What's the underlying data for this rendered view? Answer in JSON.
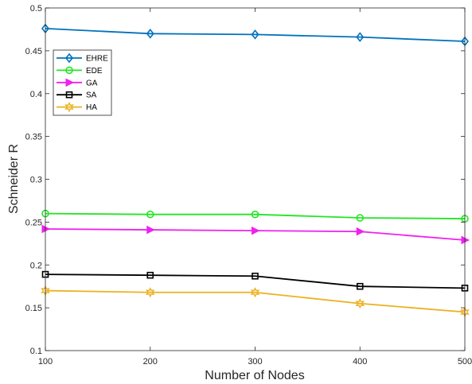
{
  "chart_data": {
    "type": "line",
    "title": "",
    "xlabel": "Number of Nodes",
    "ylabel": "Schneider R",
    "x": [
      100,
      200,
      300,
      400,
      500
    ],
    "xlim": [
      100,
      500
    ],
    "ylim": [
      0.1,
      0.5
    ],
    "x_ticks": [
      "100",
      "200",
      "300",
      "400",
      "500"
    ],
    "y_ticks": [
      "0.1",
      "0.15",
      "0.2",
      "0.25",
      "0.3",
      "0.35",
      "0.4",
      "0.45",
      "0.5"
    ],
    "grid": false,
    "legend_position": "top-left",
    "series": [
      {
        "name": "EHRE",
        "color": "#0072BD",
        "marker": "diamond",
        "values": [
          0.476,
          0.47,
          0.469,
          0.466,
          0.461
        ]
      },
      {
        "name": "EDE",
        "color": "#22E622",
        "marker": "circle",
        "values": [
          0.26,
          0.259,
          0.259,
          0.255,
          0.254
        ]
      },
      {
        "name": "GA",
        "color": "#EE22EE",
        "marker": "triangle-right",
        "values": [
          0.242,
          0.241,
          0.24,
          0.239,
          0.229
        ]
      },
      {
        "name": "SA",
        "color": "#000000",
        "marker": "square",
        "values": [
          0.189,
          0.188,
          0.187,
          0.175,
          0.173
        ]
      },
      {
        "name": "HA",
        "color": "#EDB120",
        "marker": "hexagram",
        "values": [
          0.17,
          0.168,
          0.168,
          0.155,
          0.145
        ]
      }
    ]
  }
}
